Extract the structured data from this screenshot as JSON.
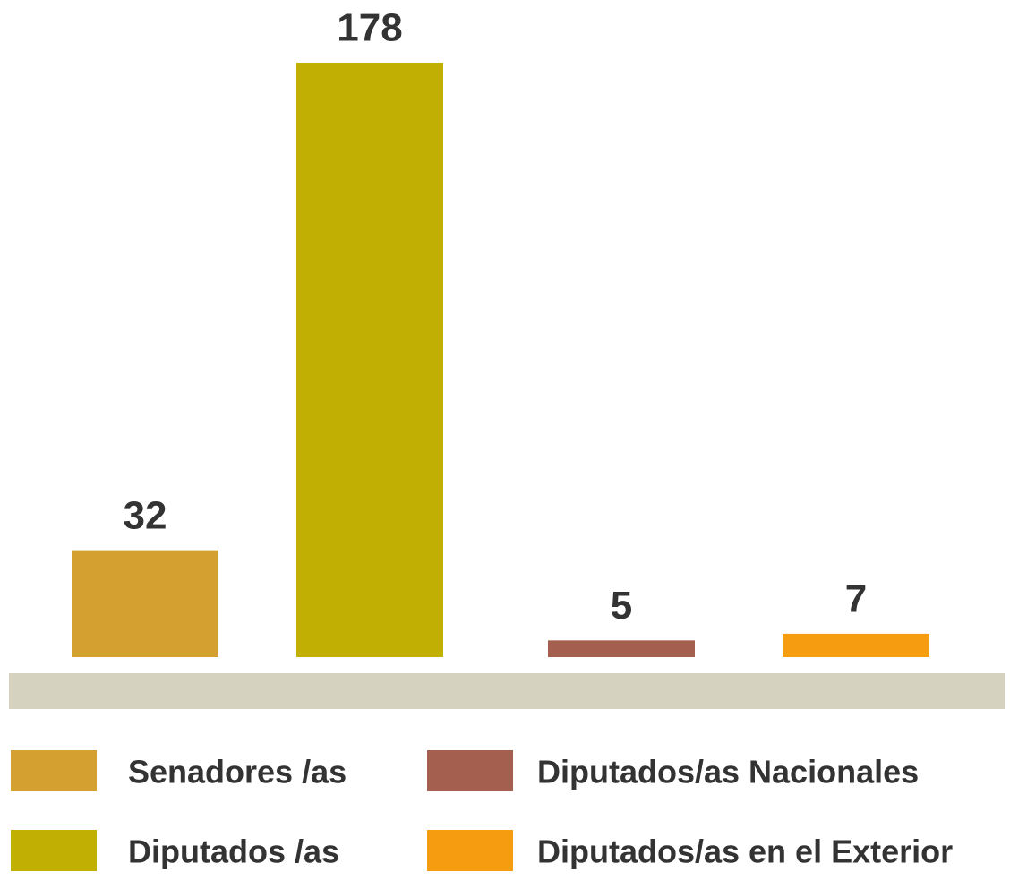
{
  "chart_data": {
    "type": "bar",
    "categories": [
      "Senadores /as",
      "Diputados /as",
      "Diputados/as Nacionales",
      "Diputados/as en el Exterior"
    ],
    "values": [
      32,
      178,
      5,
      7
    ],
    "colors": [
      "#d4a030",
      "#c2af04",
      "#a45f4e",
      "#f59c10"
    ]
  }
}
